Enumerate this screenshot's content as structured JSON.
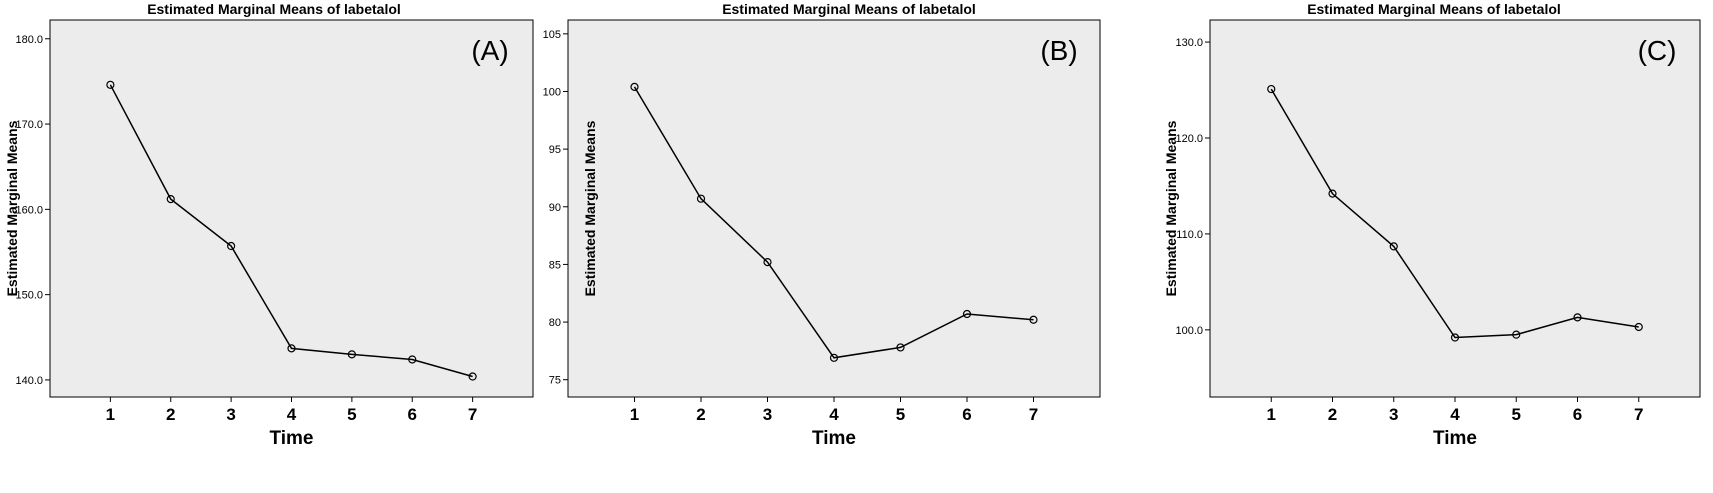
{
  "chart_data": [
    {
      "type": "line",
      "title": "Estimated Marginal Means of labetalol",
      "panel_label": "(A)",
      "xlabel": "Time",
      "ylabel": "Estimated Marginal Means",
      "x": [
        1,
        2,
        3,
        4,
        5,
        6,
        7
      ],
      "x_tick_labels": [
        "1",
        "2",
        "3",
        "4",
        "5",
        "6",
        "7"
      ],
      "values": [
        174.6,
        161.2,
        155.7,
        143.7,
        143.0,
        142.4,
        140.4
      ],
      "y_ticks": [
        140,
        150,
        160,
        170,
        180
      ],
      "y_tick_labels": [
        "140.0",
        "150.0",
        "160.0",
        "170.0",
        "180.0"
      ],
      "ylim": [
        138,
        182.2
      ],
      "grid": false,
      "legend": "none"
    },
    {
      "type": "line",
      "title": "Estimated Marginal Means of labetalol",
      "panel_label": "(B)",
      "xlabel": "Time",
      "ylabel": "Estimated Marginal Means",
      "x": [
        1,
        2,
        3,
        4,
        5,
        6,
        7
      ],
      "x_tick_labels": [
        "1",
        "2",
        "3",
        "4",
        "5",
        "6",
        "7"
      ],
      "values": [
        100.4,
        90.7,
        85.2,
        76.9,
        77.8,
        80.7,
        80.2
      ],
      "y_ticks": [
        75,
        80,
        85,
        90,
        95,
        100,
        105
      ],
      "y_tick_labels": [
        "75",
        "80",
        "85",
        "90",
        "95",
        "100",
        "105"
      ],
      "ylim": [
        73.5,
        106.2
      ],
      "grid": false,
      "legend": "none"
    },
    {
      "type": "line",
      "title": "Estimated Marginal Means of labetalol",
      "panel_label": "(C)",
      "xlabel": "Time",
      "ylabel": "Estimated Marginal Means",
      "x": [
        1,
        2,
        3,
        4,
        5,
        6,
        7
      ],
      "x_tick_labels": [
        "1",
        "2",
        "3",
        "4",
        "5",
        "6",
        "7"
      ],
      "values": [
        125.1,
        114.2,
        108.7,
        99.2,
        99.5,
        101.3,
        100.3
      ],
      "y_ticks": [
        100,
        110,
        120,
        130
      ],
      "y_tick_labels": [
        "100.0",
        "110.0",
        "120.0",
        "130.0"
      ],
      "ylim": [
        93,
        132.3
      ],
      "grid": false,
      "legend": "none"
    }
  ]
}
